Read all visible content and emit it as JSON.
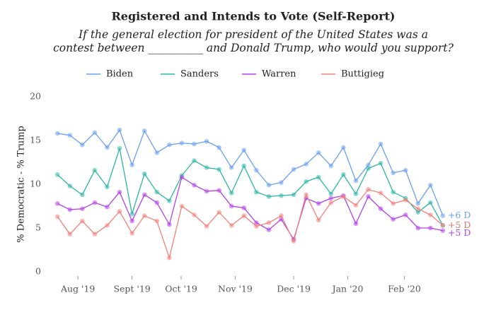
{
  "chart_data": {
    "type": "line",
    "title": "Registered and Intends to Vote (Self-Report)",
    "subtitle": [
      "If the general election for president of the United States was a",
      "contest between __________ and Donald Trump, who would you support?"
    ],
    "y_label": "% Democratic - % Trump",
    "x": [
      0,
      1,
      2,
      3,
      4,
      5,
      6,
      7,
      8,
      9,
      10,
      11,
      12,
      13,
      14,
      15,
      16,
      17,
      18,
      19,
      20,
      21,
      22,
      23,
      24,
      25,
      26,
      27,
      28,
      29,
      30,
      31
    ],
    "xlim": [
      -0.75,
      31.8
    ],
    "xticks": [
      {
        "value": 1.65,
        "label": "Aug '19"
      },
      {
        "value": 6.0,
        "label": "Sept '19"
      },
      {
        "value": 9.95,
        "label": "Oct '19"
      },
      {
        "value": 14.3,
        "label": "Nov '19"
      },
      {
        "value": 19.0,
        "label": "Dec '19"
      },
      {
        "value": 23.35,
        "label": "Jan '20"
      },
      {
        "value": 27.9,
        "label": "Feb '20"
      }
    ],
    "ylim": [
      0,
      20
    ],
    "yticks": [
      0,
      5,
      10,
      15,
      20
    ],
    "grid": false,
    "legend": "top",
    "series": [
      {
        "name": "Biden",
        "color": "#6a9ff0",
        "end_label": "+6 D",
        "values": [
          15.8,
          15.6,
          14.5,
          15.9,
          14.2,
          16.2,
          12.2,
          16.1,
          13.6,
          14.5,
          14.7,
          14.6,
          14.9,
          14.2,
          11.9,
          13.9,
          11.6,
          9.9,
          10.2,
          11.7,
          12.3,
          13.6,
          12.1,
          14.2,
          10.4,
          12.2,
          14.6,
          11.3,
          11.6,
          7.8,
          9.9,
          6.4
        ]
      },
      {
        "name": "Sanders",
        "color": "#2bb5a5",
        "end_label": "+5 D",
        "values": [
          11.1,
          9.8,
          8.8,
          11.6,
          9.7,
          14.1,
          6.6,
          11.2,
          9.1,
          8.1,
          11.0,
          12.7,
          11.9,
          11.7,
          9.0,
          12.1,
          9.1,
          8.6,
          8.7,
          8.8,
          10.3,
          10.8,
          8.9,
          11.1,
          8.9,
          11.8,
          12.4,
          9.1,
          8.4,
          6.8,
          7.9,
          5.3
        ]
      },
      {
        "name": "Warren",
        "color": "#b040e8",
        "end_label": "+5 D",
        "values": [
          7.8,
          7.1,
          7.2,
          7.9,
          7.4,
          9.1,
          5.8,
          8.8,
          7.9,
          5.4,
          10.8,
          9.9,
          9.2,
          9.3,
          7.5,
          7.3,
          5.6,
          4.8,
          6.0,
          3.7,
          8.4,
          7.8,
          8.4,
          8.7,
          5.5,
          8.6,
          7.2,
          6.0,
          6.5,
          5.0,
          5.0,
          4.7
        ]
      },
      {
        "name": "Buttigieg",
        "color": "#f08078",
        "end_label": "+5 D",
        "values": [
          6.3,
          4.3,
          5.8,
          4.3,
          5.3,
          6.9,
          4.4,
          6.4,
          5.8,
          1.6,
          7.5,
          6.5,
          5.2,
          6.8,
          5.3,
          6.4,
          5.2,
          5.6,
          6.4,
          3.5,
          8.8,
          5.9,
          7.9,
          8.6,
          7.6,
          9.4,
          9.0,
          7.8,
          8.2,
          7.2,
          6.5,
          5.3
        ]
      }
    ]
  }
}
